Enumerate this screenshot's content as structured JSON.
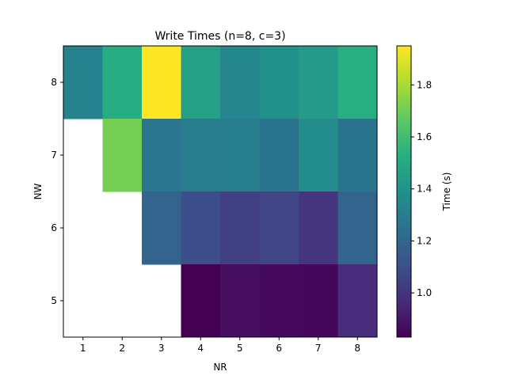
{
  "chart_data": {
    "type": "heatmap",
    "title": "Write Times (n=8, c=3)",
    "xlabel": "NR",
    "ylabel": "NW",
    "x_categories": [
      "1",
      "2",
      "3",
      "4",
      "5",
      "6",
      "7",
      "8"
    ],
    "y_categories": [
      "5",
      "6",
      "7",
      "8"
    ],
    "colorbar": {
      "label": "Time (s)",
      "colormap": "viridis",
      "vmin": 0.83,
      "vmax": 1.95,
      "ticks": [
        1.0,
        1.2,
        1.4,
        1.6,
        1.8
      ],
      "tick_labels": [
        "1.0",
        "1.2",
        "1.4",
        "1.6",
        "1.8"
      ]
    },
    "cells": [
      {
        "nw": "8",
        "values": [
          1.32,
          1.52,
          1.95,
          1.46,
          1.34,
          1.4,
          1.44,
          1.53
        ]
      },
      {
        "nw": "7",
        "values": [
          null,
          1.71,
          1.27,
          1.3,
          1.31,
          1.26,
          1.37,
          1.26
        ]
      },
      {
        "nw": "6",
        "values": [
          null,
          null,
          1.19,
          1.1,
          1.04,
          1.06,
          1.0,
          1.19
        ]
      },
      {
        "nw": "5",
        "values": [
          null,
          null,
          null,
          0.83,
          0.87,
          0.86,
          0.85,
          0.97
        ]
      }
    ]
  }
}
